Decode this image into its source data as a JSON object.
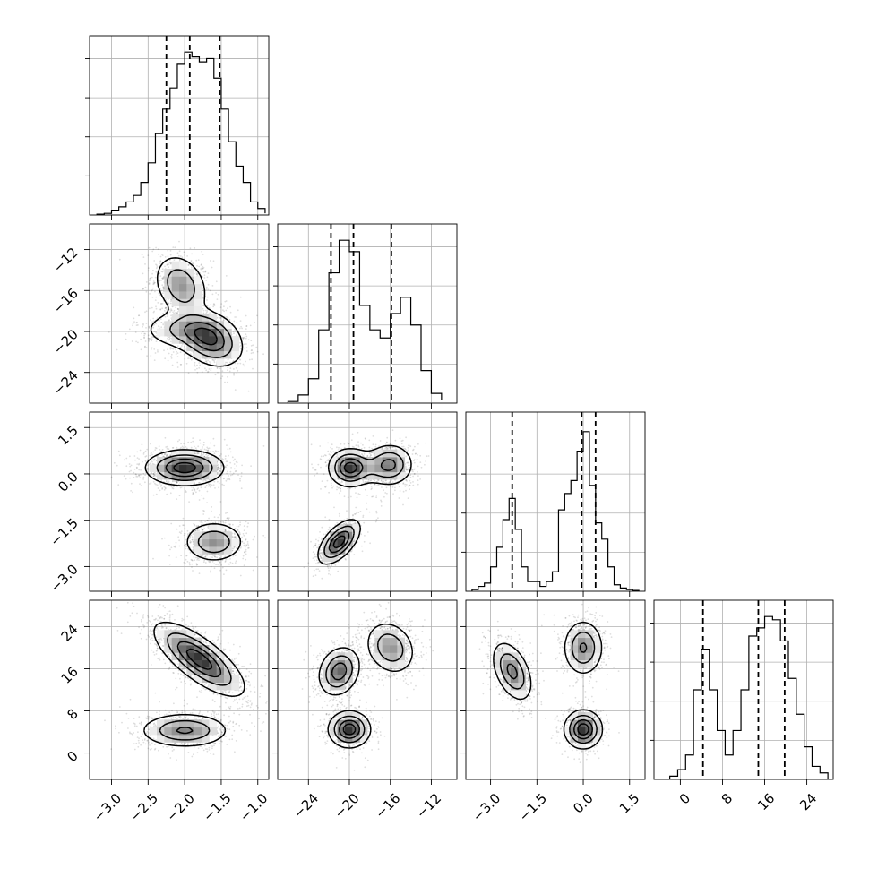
{
  "chart_data": {
    "type": "corner",
    "grid": true,
    "parameters": [
      {
        "range": [
          -3.3,
          -0.85
        ],
        "ticks": [
          -3.0,
          -2.5,
          -2.0,
          -1.5,
          -1.0
        ],
        "tick_labels": [
          "−3.0",
          "−2.5",
          "−2.0",
          "−1.5",
          "−1.0"
        ]
      },
      {
        "range": [
          -27.0,
          -9.5
        ],
        "ticks": [
          -24,
          -20,
          -16,
          -12
        ],
        "tick_labels": [
          "−24",
          "−20",
          "−16",
          "−12"
        ]
      },
      {
        "range": [
          -3.8,
          2.0
        ],
        "ticks": [
          -3.0,
          -1.5,
          0.0,
          1.5
        ],
        "tick_labels": [
          "−3.0",
          "−1.5",
          "0.0",
          "1.5"
        ]
      },
      {
        "range": [
          -5.0,
          29.0
        ],
        "ticks": [
          0,
          8,
          16,
          24
        ],
        "tick_labels": [
          "0",
          "8",
          "16",
          "24"
        ]
      }
    ],
    "histograms": [
      {
        "parameter": 0,
        "bin_edges": [
          -3.2,
          -3.1,
          -3.0,
          -2.9,
          -2.8,
          -2.7,
          -2.6,
          -2.5,
          -2.4,
          -2.3,
          -2.2,
          -2.1,
          -2.0,
          -1.9,
          -1.8,
          -1.7,
          -1.6,
          -1.5,
          -1.4,
          -1.3,
          -1.2,
          -1.1,
          -1.0,
          -0.9
        ],
        "counts": [
          0.005,
          0.01,
          0.03,
          0.05,
          0.08,
          0.12,
          0.2,
          0.32,
          0.5,
          0.65,
          0.78,
          0.93,
          1.0,
          0.97,
          0.94,
          0.96,
          0.84,
          0.65,
          0.45,
          0.3,
          0.2,
          0.08,
          0.04,
          0.01
        ],
        "quantiles": [
          -2.25,
          -1.93,
          -1.52
        ],
        "ylim": [
          0,
          1.1
        ]
      },
      {
        "parameter": 1,
        "bin_edges": [
          -26.0,
          -25.0,
          -24.0,
          -23.0,
          -22.0,
          -21.0,
          -20.0,
          -19.0,
          -18.0,
          -17.0,
          -16.0,
          -15.0,
          -14.0,
          -13.0,
          -12.0,
          -11.0
        ],
        "counts": [
          0.01,
          0.05,
          0.15,
          0.45,
          0.8,
          1.0,
          0.93,
          0.6,
          0.45,
          0.4,
          0.55,
          0.65,
          0.48,
          0.2,
          0.06,
          0.02
        ],
        "quantiles": [
          -21.8,
          -19.6,
          -15.9
        ],
        "ylim": [
          0,
          1.1
        ]
      },
      {
        "parameter": 2,
        "bin_edges": [
          -3.6,
          -3.4,
          -3.2,
          -3.0,
          -2.8,
          -2.6,
          -2.4,
          -2.2,
          -2.0,
          -1.8,
          -1.6,
          -1.4,
          -1.2,
          -1.0,
          -0.8,
          -0.6,
          -0.4,
          -0.2,
          0.0,
          0.2,
          0.4,
          0.6,
          0.8,
          1.0,
          1.2,
          1.4,
          1.6,
          1.8
        ],
        "counts": [
          0.01,
          0.03,
          0.05,
          0.15,
          0.27,
          0.44,
          0.57,
          0.38,
          0.15,
          0.06,
          0.06,
          0.03,
          0.06,
          0.12,
          0.5,
          0.6,
          0.68,
          0.86,
          0.98,
          0.65,
          0.42,
          0.32,
          0.15,
          0.04,
          0.02,
          0.01,
          0.005
        ],
        "quantiles": [
          -2.3,
          -0.05,
          0.4
        ],
        "ylim": [
          0,
          1.1
        ]
      },
      {
        "parameter": 3,
        "bin_edges": [
          -2.0,
          -0.5,
          1.0,
          2.5,
          4.0,
          5.5,
          7.0,
          8.5,
          10.0,
          11.5,
          13.0,
          14.5,
          16.0,
          17.5,
          19.0,
          20.5,
          22.0,
          23.5,
          25.0,
          26.5,
          28.0
        ],
        "counts": [
          0.02,
          0.06,
          0.15,
          0.55,
          0.8,
          0.55,
          0.3,
          0.15,
          0.3,
          0.55,
          0.88,
          0.93,
          1.0,
          0.98,
          0.85,
          0.62,
          0.4,
          0.2,
          0.08,
          0.04
        ],
        "quantiles": [
          4.3,
          14.8,
          19.8
        ],
        "ylim": [
          0,
          1.1
        ]
      }
    ],
    "joint_densities": [
      {
        "x": 0,
        "y": 1,
        "modes": [
          {
            "mean": [
              -2.05,
              -15.5
            ],
            "sd": [
              0.18,
              1.5
            ],
            "rho": -0.25,
            "weight": 0.4
          },
          {
            "mean": [
              -1.65,
              -20.8
            ],
            "sd": [
              0.22,
              1.3
            ],
            "rho": -0.3,
            "weight": 0.6
          },
          {
            "mean": [
              -2.0,
              -19.8
            ],
            "sd": [
              0.3,
              1.0
            ],
            "rho": 0.0,
            "weight": 0.3
          }
        ]
      },
      {
        "x": 0,
        "y": 2,
        "modes": [
          {
            "mean": [
              -2.0,
              0.2
            ],
            "sd": [
              0.26,
              0.28
            ],
            "rho": 0.0,
            "weight": 0.65
          },
          {
            "mean": [
              -1.6,
              -2.2
            ],
            "sd": [
              0.2,
              0.32
            ],
            "rho": 0.0,
            "weight": 0.35
          }
        ]
      },
      {
        "x": 0,
        "y": 3,
        "modes": [
          {
            "mean": [
              -1.8,
              17.8
            ],
            "sd": [
              0.3,
              3.4
            ],
            "rho": -0.75,
            "weight": 0.68
          },
          {
            "mean": [
              -2.0,
              4.3
            ],
            "sd": [
              0.3,
              1.6
            ],
            "rho": 0.0,
            "weight": 0.32
          }
        ]
      },
      {
        "x": 1,
        "y": 2,
        "modes": [
          {
            "mean": [
              -20.0,
              0.2
            ],
            "sd": [
              1.0,
              0.3
            ],
            "rho": 0.0,
            "weight": 0.35
          },
          {
            "mean": [
              -16.0,
              0.3
            ],
            "sd": [
              1.1,
              0.33
            ],
            "rho": 0.0,
            "weight": 0.3
          },
          {
            "mean": [
              -21.0,
              -2.2
            ],
            "sd": [
              1.0,
              0.35
            ],
            "rho": 0.6,
            "weight": 0.35
          },
          {
            "mean": [
              -18.0,
              0.2
            ],
            "sd": [
              1.2,
              0.3
            ],
            "rho": 0.0,
            "weight": 0.1
          }
        ]
      },
      {
        "x": 1,
        "y": 3,
        "modes": [
          {
            "mean": [
              -21.0,
              15.5
            ],
            "sd": [
              1.0,
              2.3
            ],
            "rho": 0.2,
            "weight": 0.34
          },
          {
            "mean": [
              -20.0,
              4.5
            ],
            "sd": [
              1.0,
              1.7
            ],
            "rho": 0.0,
            "weight": 0.33
          },
          {
            "mean": [
              -16.0,
              20.0
            ],
            "sd": [
              1.2,
              2.5
            ],
            "rho": -0.2,
            "weight": 0.33
          }
        ]
      },
      {
        "x": 2,
        "y": 3,
        "modes": [
          {
            "mean": [
              -2.3,
              15.5
            ],
            "sd": [
              0.32,
              2.8
            ],
            "rho": -0.45,
            "weight": 0.34
          },
          {
            "mean": [
              0.0,
              20.0
            ],
            "sd": [
              0.32,
              2.6
            ],
            "rho": 0.0,
            "weight": 0.33
          },
          {
            "mean": [
              0.0,
              4.5
            ],
            "sd": [
              0.3,
              1.8
            ],
            "rho": 0.0,
            "weight": 0.33
          }
        ]
      }
    ]
  }
}
